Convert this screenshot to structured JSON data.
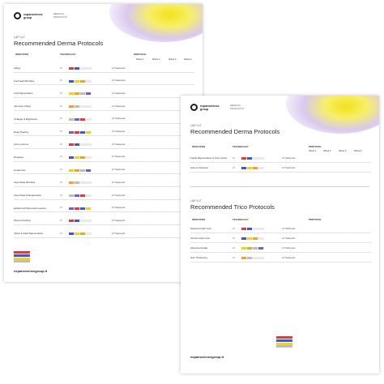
{
  "colors": {
    "red": "#e23a3a",
    "blue": "#3f57c8",
    "yellow": "#f2d21d",
    "orange": "#f1a22a",
    "grey": "#bdbdbd",
    "purple": "#7a5cc9",
    "pink": "#e58fb6"
  },
  "back": {
    "logo_name": "expanscience\ngroup",
    "logo_sub": "MEDICAL\nPRODUCTS",
    "small_caption": "LAP·LLT",
    "title": "Recommended Derma Protocols",
    "col_indication": "INDICATION",
    "col_technology": "TECHNOLOGY",
    "col_protocol": "PROTOCOL",
    "weeks": [
      "Week 1",
      "Week 2",
      "Week 3",
      "Week 4"
    ],
    "rows": [
      {
        "name": "Lifting",
        "tx": "x3 Treatments"
      },
      {
        "name": "Forehead Wrinkles",
        "tx": "x3 Treatments"
      },
      {
        "name": "Anti-Pigmentation",
        "tx": "x3 Treatments"
      },
      {
        "name": "Intensive Lifting",
        "tx": "x4 Treatments"
      },
      {
        "name": "Oxidage & Brightness",
        "tx": "x3 Treatments"
      },
      {
        "name": "Deep Peeling",
        "tx": "x3 Treatments"
      },
      {
        "name": "Acne Lesions",
        "tx": "x3 Treatments"
      },
      {
        "name": "Rosacea",
        "tx": "x3 Treatments"
      },
      {
        "name": "Couperose",
        "tx": "x3 Treatments"
      },
      {
        "name": "Superficial Wrinkles",
        "tx": "x3 Treatments"
      },
      {
        "name": "Superficial Telangiectasia",
        "tx": "x3 Treatments"
      },
      {
        "name": "Epidermal Pigmented Lesions",
        "tx": "x3 Treatments"
      },
      {
        "name": "Wound Healing",
        "tx": "x3 Treatments"
      },
      {
        "name": "Infant & Adult Rejuvenation",
        "tx": "x3 Treatments"
      }
    ],
    "site": "expansciencegroup.it"
  },
  "front": {
    "logo_name": "expanscience\ngroup",
    "logo_sub": "MEDICAL\nPRODUCTS",
    "small_caption": "LAP·LLT",
    "title": "Recommended Derma Protocols",
    "col_indication": "INDICATION",
    "col_technology": "TECHNOLOGY",
    "col_protocol": "PROTOCOL",
    "weeks": [
      "Week 1",
      "Week 2",
      "Week 3",
      "Week 4"
    ],
    "rows": [
      {
        "name": "Facial Rejuvenation & Acne Scars",
        "tx": "x3 Treatments"
      },
      {
        "name": "Ache & Alopecia",
        "tx": "x3 Treatments"
      }
    ],
    "trico_caption": "LAP·LLT",
    "trico_title": "Recommended Trico Protocols",
    "trico_rows": [
      {
        "name": "Seasonal Hair Loss",
        "tx": "x3 Treatments"
      },
      {
        "name": "Chronic Hair Loss",
        "tx": "x4 Treatments"
      },
      {
        "name": "Alopecia Areata",
        "tx": "x3 Treatments"
      },
      {
        "name": "Hair Thickening",
        "tx": "x4 Treatments"
      }
    ],
    "site": "expansciencegroup.it"
  }
}
